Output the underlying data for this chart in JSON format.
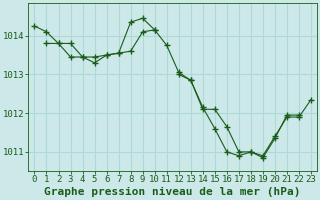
{
  "title": "Graphe pression niveau de la mer (hPa)",
  "bg_color": "#cce8e8",
  "line_color": "#1a5c1a",
  "grid_color": "#b0d8d8",
  "xlim": [
    -0.5,
    23.5
  ],
  "ylim": [
    1010.5,
    1014.85
  ],
  "yticks": [
    1011,
    1012,
    1013,
    1014
  ],
  "xticks": [
    0,
    1,
    2,
    3,
    4,
    5,
    6,
    7,
    8,
    9,
    10,
    11,
    12,
    13,
    14,
    15,
    16,
    17,
    18,
    19,
    20,
    21,
    22,
    23
  ],
  "series": [
    [
      [
        0,
        1014.25
      ],
      [
        1,
        1014.1
      ],
      [
        2,
        1013.8
      ],
      [
        3,
        1013.8
      ],
      [
        4,
        1013.45
      ],
      [
        5,
        1013.45
      ],
      [
        6,
        1013.5
      ],
      [
        7,
        1013.55
      ],
      [
        8,
        1013.6
      ],
      [
        9,
        1014.1
      ],
      [
        10,
        1014.15
      ],
      [
        11,
        1013.75
      ],
      [
        12,
        1013.05
      ],
      [
        13,
        1012.85
      ],
      [
        14,
        1012.1
      ],
      [
        15,
        1012.1
      ],
      [
        16,
        1011.65
      ],
      [
        17,
        1011.0
      ],
      [
        18,
        1011.0
      ],
      [
        19,
        1010.85
      ],
      [
        20,
        1011.35
      ],
      [
        21,
        1011.95
      ],
      [
        22,
        1011.95
      ]
    ],
    [
      [
        1,
        1013.8
      ],
      [
        2,
        1013.8
      ],
      [
        3,
        1013.45
      ],
      [
        4,
        1013.45
      ],
      [
        5,
        1013.3
      ],
      [
        6,
        1013.5
      ],
      [
        7,
        1013.55
      ],
      [
        8,
        1014.35
      ],
      [
        9,
        1014.45
      ],
      [
        10,
        1014.15
      ]
    ],
    [
      [
        12,
        1013.0
      ],
      [
        13,
        1012.85
      ],
      [
        14,
        1012.15
      ],
      [
        15,
        1011.6
      ],
      [
        16,
        1011.0
      ],
      [
        17,
        1010.9
      ],
      [
        18,
        1011.0
      ],
      [
        19,
        1010.9
      ],
      [
        20,
        1011.4
      ],
      [
        21,
        1011.9
      ],
      [
        22,
        1011.9
      ],
      [
        23,
        1012.35
      ]
    ]
  ],
  "title_fontsize": 8,
  "tick_fontsize": 6.5
}
